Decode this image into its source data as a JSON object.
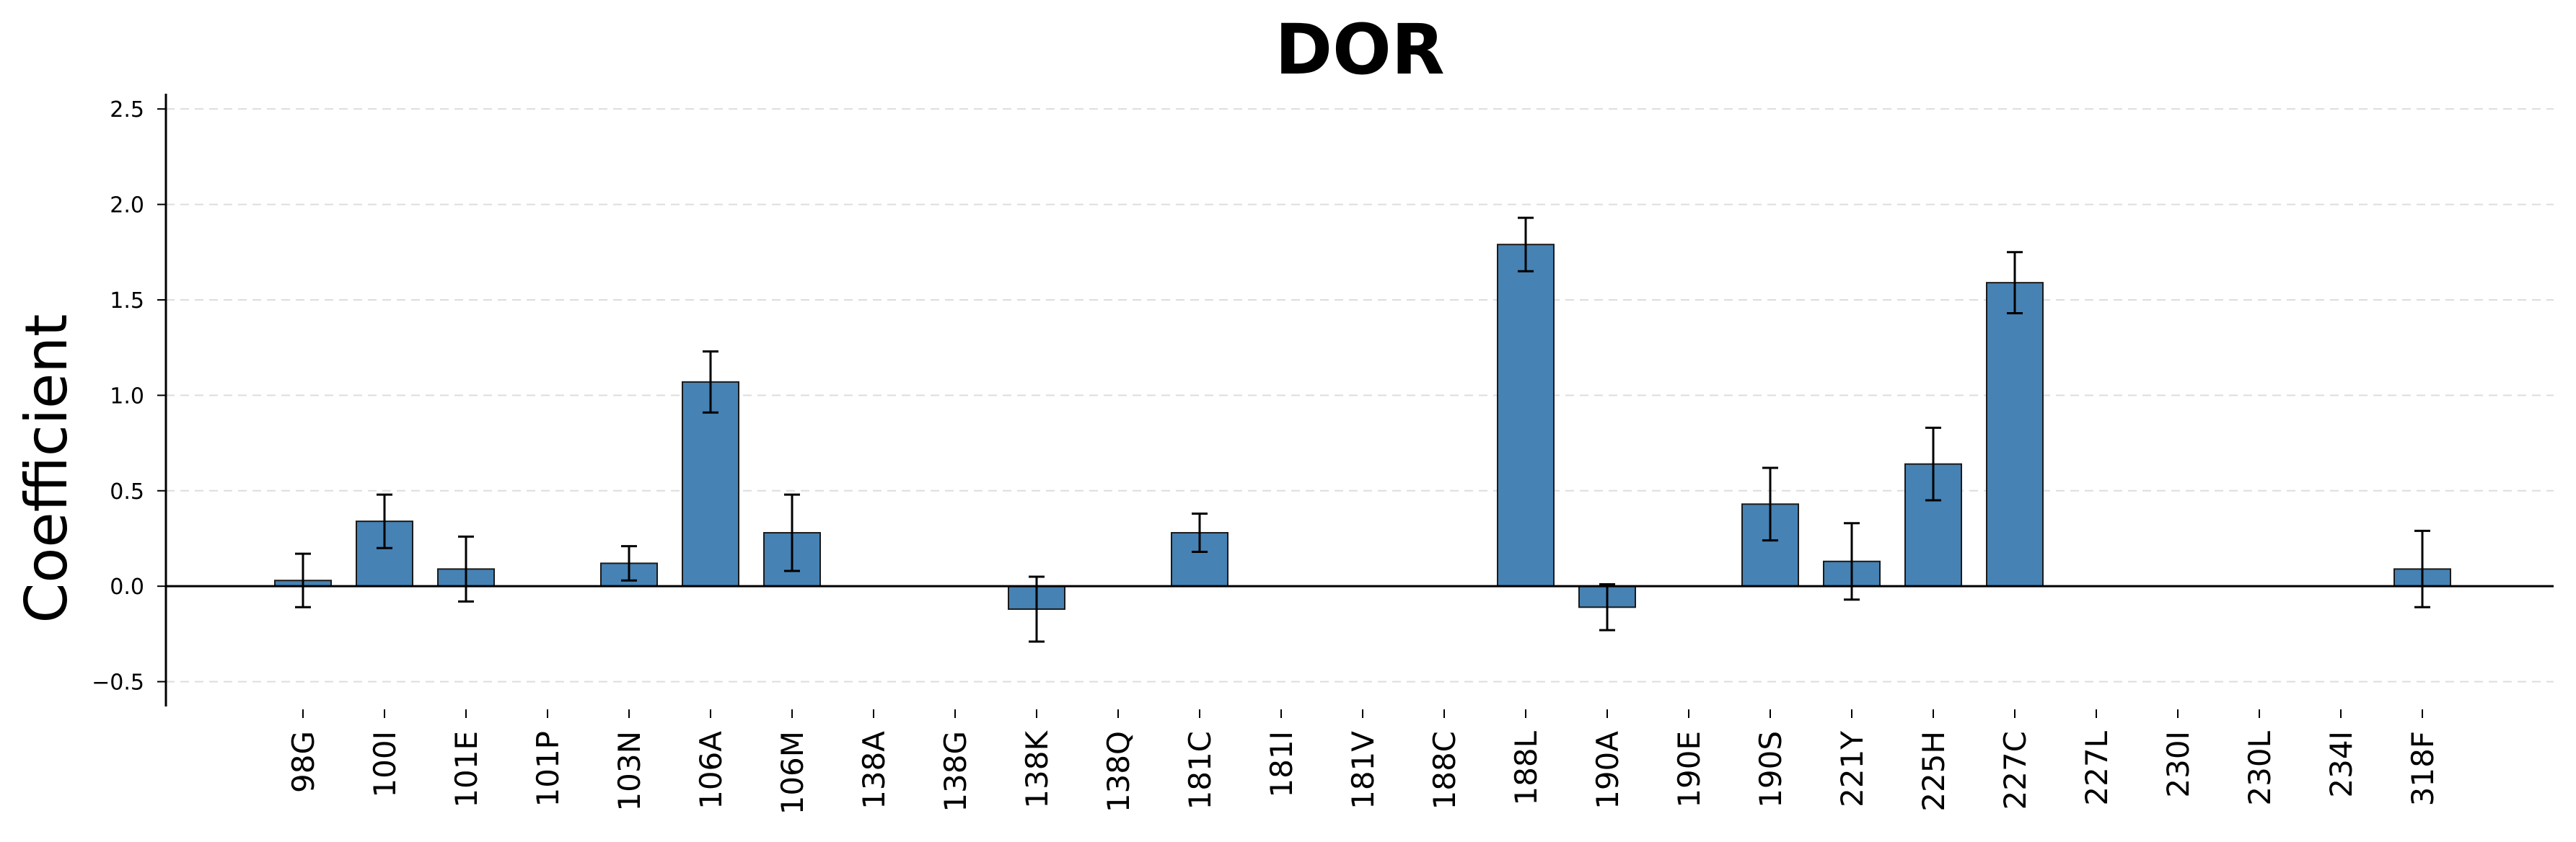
{
  "chart_data": {
    "type": "bar",
    "title": "DOR",
    "xlabel": "",
    "ylabel": "Coefficient",
    "ylim": [
      -0.63,
      2.58
    ],
    "yticks": [
      -0.5,
      0.0,
      0.5,
      1.0,
      1.5,
      2.0,
      2.5
    ],
    "ytick_labels": [
      "−0.5",
      "0.0",
      "0.5",
      "1.0",
      "1.5",
      "2.0",
      "2.5"
    ],
    "grid": "horizontal dashed",
    "bar_color": "#4682b4",
    "categories": [
      "98G",
      "100I",
      "101E",
      "101P",
      "103N",
      "106A",
      "106M",
      "138A",
      "138G",
      "138K",
      "138Q",
      "181C",
      "181I",
      "181V",
      "188C",
      "188L",
      "190A",
      "190E",
      "190S",
      "221Y",
      "225H",
      "227C",
      "227L",
      "230I",
      "230L",
      "234I",
      "318F"
    ],
    "values": [
      0.03,
      0.34,
      0.09,
      0.0,
      0.12,
      1.07,
      0.28,
      0.0,
      0.0,
      -0.12,
      0.0,
      0.28,
      0.0,
      0.0,
      0.0,
      1.79,
      -0.11,
      0.0,
      0.43,
      0.13,
      0.64,
      1.59,
      0.0,
      0.0,
      0.0,
      0.0,
      0.09
    ],
    "errors": [
      0.14,
      0.14,
      0.17,
      0.0,
      0.09,
      0.16,
      0.2,
      0.0,
      0.0,
      0.17,
      0.0,
      0.1,
      0.0,
      0.0,
      0.0,
      0.14,
      0.12,
      0.0,
      0.19,
      0.2,
      0.19,
      0.16,
      0.0,
      0.0,
      0.0,
      0.0,
      0.2
    ]
  }
}
